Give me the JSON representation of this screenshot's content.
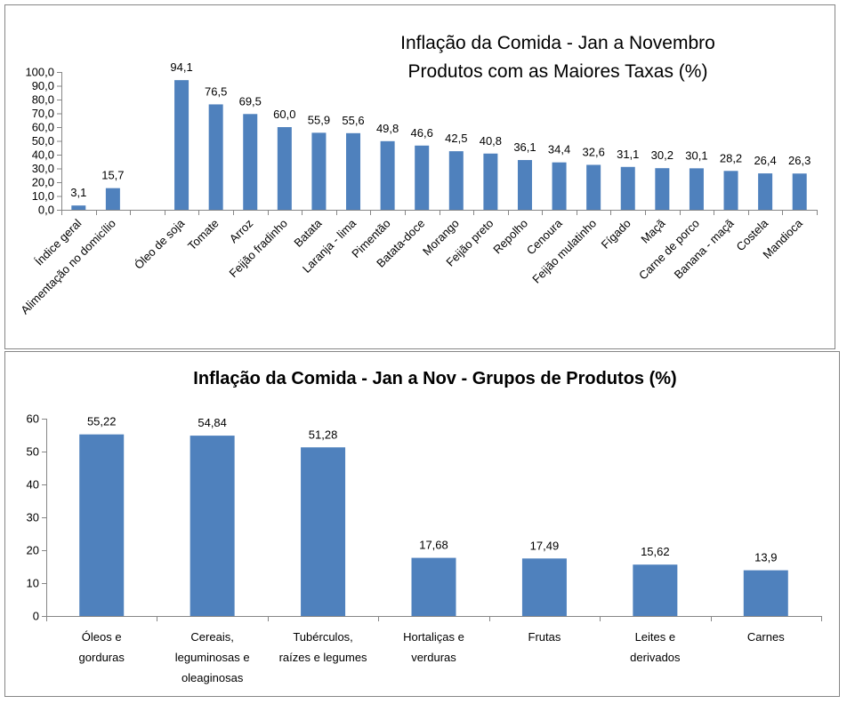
{
  "chart_data": [
    {
      "type": "bar",
      "title": [
        "Inflação da Comida - Jan a Novembro",
        "Produtos com as Maiores Taxas (%)"
      ],
      "xlabel": "",
      "ylabel": "",
      "ylim": [
        0,
        100
      ],
      "yticks": [
        "0,0",
        "10,0",
        "20,0",
        "30,0",
        "40,0",
        "50,0",
        "60,0",
        "70,0",
        "80,0",
        "90,0",
        "100,0"
      ],
      "categories": [
        "Índice geral",
        "Alimentação no domicílio",
        "",
        "Óleo de soja",
        "Tomate",
        "Arroz",
        "Feijão fradinho",
        "Batata",
        "Laranja - lima",
        "Pimentão",
        "Batata-doce",
        "Morango",
        "Feijão preto",
        "Repolho",
        "Cenoura",
        "Feijão mulatinho",
        "Fígado",
        "Maçã",
        "Carne de porco",
        "Banana - maçã",
        "Costela",
        "Mandioca"
      ],
      "values": [
        3.1,
        15.7,
        null,
        94.1,
        76.5,
        69.5,
        60.0,
        55.9,
        55.6,
        49.8,
        46.6,
        42.5,
        40.8,
        36.1,
        34.4,
        32.6,
        31.1,
        30.2,
        30.1,
        28.2,
        26.4,
        26.3
      ],
      "labels": [
        "3,1",
        "15,7",
        "",
        "94,1",
        "76,5",
        "69,5",
        "60,0",
        "55,9",
        "55,6",
        "49,8",
        "46,6",
        "42,5",
        "40,8",
        "36,1",
        "34,4",
        "32,6",
        "31,1",
        "30,2",
        "30,1",
        "28,2",
        "26,4",
        "26,3"
      ],
      "grid": false,
      "legend": "none",
      "bar_color": "#4f81bd"
    },
    {
      "type": "bar",
      "title": [
        "Inflação da Comida - Jan a Nov - Grupos de Produtos (%)"
      ],
      "xlabel": "",
      "ylabel": "",
      "ylim": [
        0,
        60
      ],
      "yticks": [
        "0",
        "10",
        "20",
        "30",
        "40",
        "50",
        "60"
      ],
      "categories": [
        [
          "Óleos e",
          "gorduras"
        ],
        [
          "Cereais,",
          "leguminosas e",
          "oleaginosas"
        ],
        [
          "Tubérculos,",
          "raízes e legumes"
        ],
        [
          "Hortaliças e",
          "verduras"
        ],
        [
          "Frutas"
        ],
        [
          "Leites e",
          "derivados"
        ],
        [
          "Carnes"
        ]
      ],
      "values": [
        55.22,
        54.84,
        51.28,
        17.68,
        17.49,
        15.62,
        13.9
      ],
      "labels": [
        "55,22",
        "54,84",
        "51,28",
        "17,68",
        "17,49",
        "15,62",
        "13,9"
      ],
      "grid": false,
      "legend": "none",
      "bar_color": "#4f81bd"
    }
  ]
}
